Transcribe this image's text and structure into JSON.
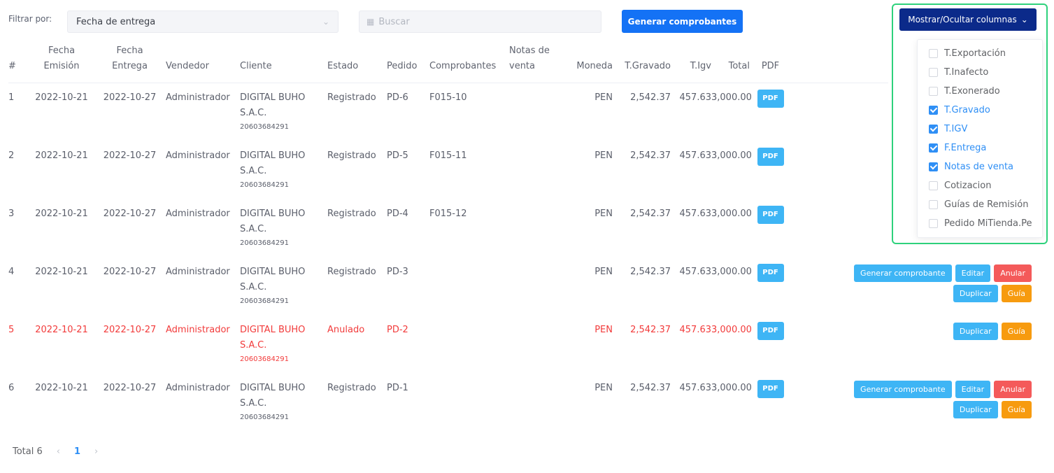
{
  "filter": {
    "label": "Filtrar por:",
    "selected": "Fecha de entrega",
    "search_placeholder": "Buscar",
    "generate_button": "Generar comprobantes"
  },
  "columns_toggle": {
    "button_label": "Mostrar/Ocultar columnas",
    "options": [
      {
        "label": "T.Exportación",
        "checked": false
      },
      {
        "label": "T.Inafecto",
        "checked": false
      },
      {
        "label": "T.Exonerado",
        "checked": false
      },
      {
        "label": "T.Gravado",
        "checked": true
      },
      {
        "label": "T.IGV",
        "checked": true
      },
      {
        "label": "F.Entrega",
        "checked": true
      },
      {
        "label": "Notas de venta",
        "checked": true
      },
      {
        "label": "Cotizacion",
        "checked": false
      },
      {
        "label": "Guías de Remisión",
        "checked": false
      },
      {
        "label": "Pedido MiTienda.Pe",
        "checked": false
      }
    ]
  },
  "table": {
    "headers": {
      "num": "#",
      "fecha_emision_1": "Fecha",
      "fecha_emision_2": "Emisión",
      "fecha_entrega_1": "Fecha",
      "fecha_entrega_2": "Entrega",
      "vendedor": "Vendedor",
      "cliente": "Cliente",
      "estado": "Estado",
      "pedido": "Pedido",
      "comprobantes": "Comprobantes",
      "notas_1": "Notas de",
      "notas_2": "venta",
      "moneda": "Moneda",
      "gravado": "T.Gravado",
      "igv": "T.Igv",
      "total": "Total",
      "pdf": "PDF"
    },
    "rows": [
      {
        "num": "1",
        "emision": "2022-10-21",
        "entrega": "2022-10-27",
        "vendedor": "Administrador",
        "cliente_1": "DIGITAL BUHO",
        "cliente_2": "S.A.C.",
        "ruc": "20603684291",
        "estado": "Registrado",
        "pedido": "PD-6",
        "comprobante": "F015-10",
        "moneda": "PEN",
        "gravado": "2,542.37",
        "igv": "457.63",
        "total": "3,000.00",
        "pdf": "PDF",
        "annulled": false,
        "actions": []
      },
      {
        "num": "2",
        "emision": "2022-10-21",
        "entrega": "2022-10-27",
        "vendedor": "Administrador",
        "cliente_1": "DIGITAL BUHO",
        "cliente_2": "S.A.C.",
        "ruc": "20603684291",
        "estado": "Registrado",
        "pedido": "PD-5",
        "comprobante": "F015-11",
        "moneda": "PEN",
        "gravado": "2,542.37",
        "igv": "457.63",
        "total": "3,000.00",
        "pdf": "PDF",
        "annulled": false,
        "actions": []
      },
      {
        "num": "3",
        "emision": "2022-10-21",
        "entrega": "2022-10-27",
        "vendedor": "Administrador",
        "cliente_1": "DIGITAL BUHO",
        "cliente_2": "S.A.C.",
        "ruc": "20603684291",
        "estado": "Registrado",
        "pedido": "PD-4",
        "comprobante": "F015-12",
        "moneda": "PEN",
        "gravado": "2,542.37",
        "igv": "457.63",
        "total": "3,000.00",
        "pdf": "PDF",
        "annulled": false,
        "actions": []
      },
      {
        "num": "4",
        "emision": "2022-10-21",
        "entrega": "2022-10-27",
        "vendedor": "Administrador",
        "cliente_1": "DIGITAL BUHO",
        "cliente_2": "S.A.C.",
        "ruc": "20603684291",
        "estado": "Registrado",
        "pedido": "PD-3",
        "comprobante": "",
        "moneda": "PEN",
        "gravado": "2,542.37",
        "igv": "457.63",
        "total": "3,000.00",
        "pdf": "PDF",
        "annulled": false,
        "actions": [
          {
            "label": "Generar comprobante",
            "color": "blue"
          },
          {
            "label": "Editar",
            "color": "blue"
          },
          {
            "label": "Anular",
            "color": "red"
          },
          {
            "label": "Duplicar",
            "color": "blue"
          },
          {
            "label": "Guía",
            "color": "orange"
          }
        ]
      },
      {
        "num": "5",
        "emision": "2022-10-21",
        "entrega": "2022-10-27",
        "vendedor": "Administrador",
        "cliente_1": "DIGITAL BUHO",
        "cliente_2": "S.A.C.",
        "ruc": "20603684291",
        "estado": "Anulado",
        "pedido": "PD-2",
        "comprobante": "",
        "moneda": "PEN",
        "gravado": "2,542.37",
        "igv": "457.63",
        "total": "3,000.00",
        "pdf": "PDF",
        "annulled": true,
        "actions": [
          {
            "label": "Duplicar",
            "color": "blue"
          },
          {
            "label": "Guía",
            "color": "orange"
          }
        ]
      },
      {
        "num": "6",
        "emision": "2022-10-21",
        "entrega": "2022-10-27",
        "vendedor": "Administrador",
        "cliente_1": "DIGITAL BUHO",
        "cliente_2": "S.A.C.",
        "ruc": "20603684291",
        "estado": "Registrado",
        "pedido": "PD-1",
        "comprobante": "",
        "moneda": "PEN",
        "gravado": "2,542.37",
        "igv": "457.63",
        "total": "3,000.00",
        "pdf": "PDF",
        "annulled": false,
        "actions": [
          {
            "label": "Generar comprobante",
            "color": "blue"
          },
          {
            "label": "Editar",
            "color": "blue"
          },
          {
            "label": "Anular",
            "color": "red"
          },
          {
            "label": "Duplicar",
            "color": "blue"
          },
          {
            "label": "Guía",
            "color": "orange"
          }
        ]
      }
    ]
  },
  "pagination": {
    "total_label": "Total 6",
    "current_page": "1",
    "prev_icon": "chevron-left-icon",
    "next_icon": "chevron-right-icon"
  }
}
